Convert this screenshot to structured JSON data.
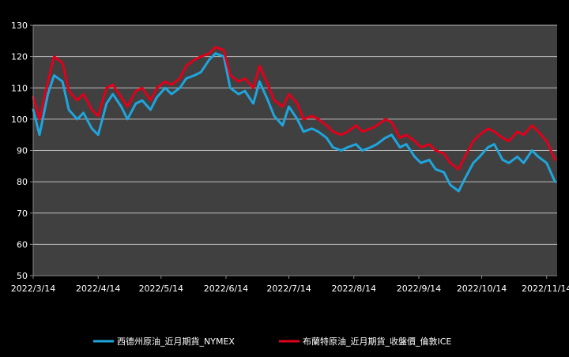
{
  "chart_data": {
    "type": "line",
    "title": "",
    "xlabel": "",
    "ylabel": "",
    "ylim": [
      50,
      130
    ],
    "yticks": [
      50,
      60,
      70,
      80,
      90,
      100,
      110,
      120,
      130
    ],
    "xticks": [
      "2022/3/14",
      "2022/4/14",
      "2022/5/14",
      "2022/6/14",
      "2022/7/14",
      "2022/8/14",
      "2022/9/14",
      "2022/10/14",
      "2022/11/14"
    ],
    "grid": true,
    "legend_position": "bottom",
    "x": [
      "2022/3/14",
      "2022/3/17",
      "2022/3/21",
      "2022/3/24",
      "2022/3/28",
      "2022/3/31",
      "2022/4/4",
      "2022/4/7",
      "2022/4/11",
      "2022/4/14",
      "2022/4/18",
      "2022/4/21",
      "2022/4/25",
      "2022/4/28",
      "2022/5/2",
      "2022/5/5",
      "2022/5/9",
      "2022/5/12",
      "2022/5/16",
      "2022/5/19",
      "2022/5/23",
      "2022/5/26",
      "2022/5/30",
      "2022/6/2",
      "2022/6/6",
      "2022/6/9",
      "2022/6/13",
      "2022/6/16",
      "2022/6/20",
      "2022/6/23",
      "2022/6/27",
      "2022/6/30",
      "2022/7/4",
      "2022/7/7",
      "2022/7/11",
      "2022/7/14",
      "2022/7/18",
      "2022/7/21",
      "2022/7/25",
      "2022/7/28",
      "2022/8/1",
      "2022/8/4",
      "2022/8/8",
      "2022/8/11",
      "2022/8/15",
      "2022/8/18",
      "2022/8/22",
      "2022/8/25",
      "2022/8/29",
      "2022/9/1",
      "2022/9/5",
      "2022/9/8",
      "2022/9/12",
      "2022/9/15",
      "2022/9/19",
      "2022/9/22",
      "2022/9/26",
      "2022/9/29",
      "2022/10/3",
      "2022/10/6",
      "2022/10/10",
      "2022/10/13",
      "2022/10/17",
      "2022/10/20",
      "2022/10/24",
      "2022/10/27",
      "2022/10/31",
      "2022/11/3",
      "2022/11/7",
      "2022/11/10",
      "2022/11/14",
      "2022/11/18"
    ],
    "series": [
      {
        "name": "西德州原油_近月期貨_NYMEX",
        "color": "#1fa5dd",
        "values": [
          103,
          95,
          108,
          114,
          112,
          103,
          100,
          102,
          97,
          95,
          105,
          108,
          104,
          100,
          105,
          106,
          103,
          107,
          110,
          108,
          110,
          113,
          114,
          115,
          119,
          121,
          120,
          110,
          108,
          109,
          105,
          112,
          106,
          101,
          98,
          104,
          100,
          96,
          97,
          96,
          94,
          91,
          90,
          91,
          92,
          90,
          91,
          92,
          94,
          95,
          91,
          92,
          88,
          86,
          87,
          84,
          83,
          79,
          77,
          81,
          86,
          88,
          91,
          92,
          87,
          86,
          88,
          86,
          90,
          88,
          86,
          80
        ]
      },
      {
        "name": "布蘭特原油_近月期貨_收盤價_倫敦ICE",
        "color": "#e0001b",
        "values": [
          107,
          100,
          112,
          120,
          118,
          109,
          106,
          108,
          103,
          101,
          110,
          111,
          107,
          104,
          109,
          110,
          106,
          110,
          112,
          111,
          113,
          117,
          119,
          120,
          121,
          123,
          122,
          114,
          112,
          113,
          110,
          117,
          111,
          106,
          104,
          108,
          105,
          100,
          101,
          100,
          98,
          96,
          95,
          96,
          98,
          96,
          97,
          98,
          100,
          99,
          94,
          95,
          93,
          91,
          92,
          90,
          89,
          86,
          84,
          88,
          93,
          95,
          97,
          96,
          94,
          93,
          96,
          95,
          98,
          96,
          93,
          87
        ]
      }
    ]
  }
}
